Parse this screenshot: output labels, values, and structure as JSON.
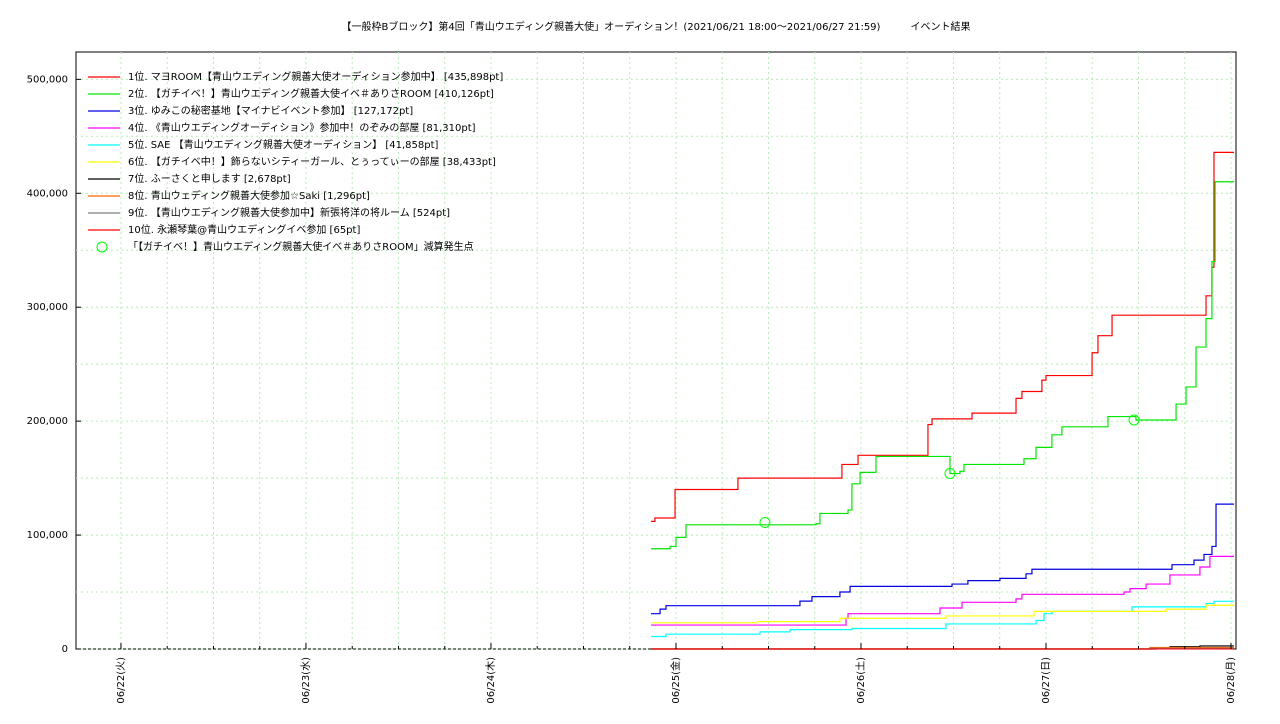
{
  "chart_data": {
    "type": "line",
    "step": "post",
    "title": "【一般枠Bブロック】第4回「青山ウエディング親善大使」オーディション！(2021/06/21 18:00〜2021/06/27 21:59)　　　イベント結果",
    "xlim": [
      21.757,
      28.027
    ],
    "ylim": [
      0,
      524000
    ],
    "xticks": [
      {
        "value": 22,
        "label": "06/22(火)"
      },
      {
        "value": 23,
        "label": "06/23(水)"
      },
      {
        "value": 24,
        "label": "06/24(木)"
      },
      {
        "value": 25,
        "label": "06/25(金)"
      },
      {
        "value": 26,
        "label": "06/26(土)"
      },
      {
        "value": 27,
        "label": "06/27(日)"
      },
      {
        "value": 28,
        "label": "06/28(月)"
      }
    ],
    "yticks": [
      0,
      {
        "value": 100000,
        "label": "100,000"
      },
      {
        "value": 200000,
        "label": "200,000"
      },
      {
        "value": 300000,
        "label": "300,000"
      },
      {
        "value": 400000,
        "label": "400,000"
      },
      {
        "value": 500000,
        "label": "500,000"
      }
    ],
    "grid": true,
    "legend": "upper-left",
    "series": [
      {
        "name": "1位. マヨROOM【青山ウエディング親善大使オーディション参加中】 [435,898pt]",
        "color": "#ff0000",
        "x": [
          24.865,
          24.886,
          24.995,
          25.335,
          25.897,
          25.984,
          26.362,
          26.384,
          26.6,
          26.838,
          26.87,
          26.978,
          27.0,
          27.249,
          27.281,
          27.357,
          27.865,
          27.897,
          27.908,
          28.016
        ],
        "values": [
          112000,
          115000,
          140000,
          150000,
          162000,
          170000,
          197000,
          202000,
          207000,
          220000,
          226000,
          236000,
          240000,
          260000,
          275000,
          293000,
          310000,
          335000,
          435898,
          435898
        ]
      },
      {
        "name": "2位. 【ガチイベ！】青山ウエディング親善大使イベ＃ありさROOM [410,126pt]",
        "color": "#00e600",
        "x": [
          24.865,
          24.968,
          25.0,
          25.054,
          25.757,
          25.778,
          25.93,
          25.951,
          25.995,
          26.081,
          26.481,
          26.535,
          26.557,
          26.881,
          26.946,
          27.032,
          27.086,
          27.335,
          27.486,
          27.703,
          27.757,
          27.811,
          27.865,
          27.897,
          27.914,
          28.016
        ],
        "values": [
          88000,
          90000,
          98000,
          109000,
          110000,
          119000,
          122000,
          145000,
          155000,
          169000,
          154000,
          156000,
          162000,
          167000,
          177000,
          188000,
          195000,
          204000,
          201000,
          215000,
          230000,
          265000,
          290000,
          340000,
          410126,
          410126
        ]
      },
      {
        "name": "3位. ゆみこの秘密基地【マイナビイベント参加】 [127,172pt]",
        "color": "#0000e0",
        "x": [
          24.865,
          24.914,
          24.946,
          25.67,
          25.735,
          25.886,
          25.941,
          26.492,
          26.578,
          26.751,
          26.892,
          26.924,
          27.681,
          27.8,
          27.854,
          27.897,
          27.919,
          28.016
        ],
        "values": [
          31000,
          35000,
          38000,
          42000,
          46000,
          50000,
          55000,
          57000,
          60000,
          62000,
          66000,
          70000,
          74000,
          78000,
          83000,
          90000,
          127172,
          127172
        ]
      },
      {
        "name": "4位. 《青山ウエディングオーディション》参加中！のぞみの部屋 [81,310pt]",
        "color": "#ff00ff",
        "x": [
          24.865,
          25.919,
          25.93,
          26.427,
          26.546,
          26.838,
          26.87,
          27.422,
          27.454,
          27.541,
          27.67,
          27.832,
          27.886,
          28.016
        ],
        "values": [
          21000,
          27000,
          31000,
          36000,
          41000,
          44000,
          48000,
          50000,
          53000,
          57000,
          65000,
          72000,
          81310,
          81310
        ]
      },
      {
        "name": "5位. SAE 【青山ウエディング親善大使オーディション】 [41,858pt]",
        "color": "#00ffff",
        "x": [
          24.865,
          24.946,
          25.454,
          25.616,
          25.951,
          26.459,
          26.946,
          26.989,
          27.032,
          27.465,
          27.865,
          27.908,
          28.016
        ],
        "values": [
          11000,
          13000,
          15000,
          17000,
          18000,
          22000,
          25000,
          31000,
          33000,
          37000,
          40000,
          41858,
          41858
        ]
      },
      {
        "name": "6位. 【ガチイベ中！】飾らないシティーガール、とぅってぃーの部屋 [38,433pt]",
        "color": "#ffff00",
        "x": [
          24.865,
          25.443,
          25.886,
          26.459,
          26.935,
          27.649,
          27.865,
          28.016
        ],
        "values": [
          23000,
          24000,
          27000,
          29000,
          33000,
          35000,
          38433,
          38433
        ]
      },
      {
        "name": "7位. ふーさくと申します [2,678pt]",
        "color": "#000000",
        "x": [
          24.865,
          27.595,
          27.67,
          27.832,
          28.016
        ],
        "values": [
          0,
          1000,
          2000,
          2678,
          2678
        ]
      },
      {
        "name": "8位. 青山ウェディング親善大使参加☆Saki [1,296pt]",
        "color": "#ff6600",
        "x": [
          24.865,
          27.562,
          28.016
        ],
        "values": [
          0,
          1296,
          1296
        ]
      },
      {
        "name": "9位. 【青山ウエディング親善大使参加中】新張将洋の将ルーム [524pt]",
        "color": "#808080",
        "x": [
          24.865,
          27.562,
          28.016
        ],
        "values": [
          0,
          524,
          524
        ]
      },
      {
        "name": "10位. 永瀬琴葉@青山ウエディングイベ参加 [65pt]",
        "color": "#ff0000",
        "x": [
          24.865,
          28.016
        ],
        "values": [
          65,
          65
        ]
      },
      {
        "name": "「【ガチイベ！】青山ウエディング親善大使イベ＃ありさROOM」減算発生点",
        "color": "#00ff00",
        "type": "scatter",
        "x": [
          25.481,
          26.481,
          27.476
        ],
        "values": [
          111000,
          154000,
          201000
        ]
      }
    ]
  }
}
